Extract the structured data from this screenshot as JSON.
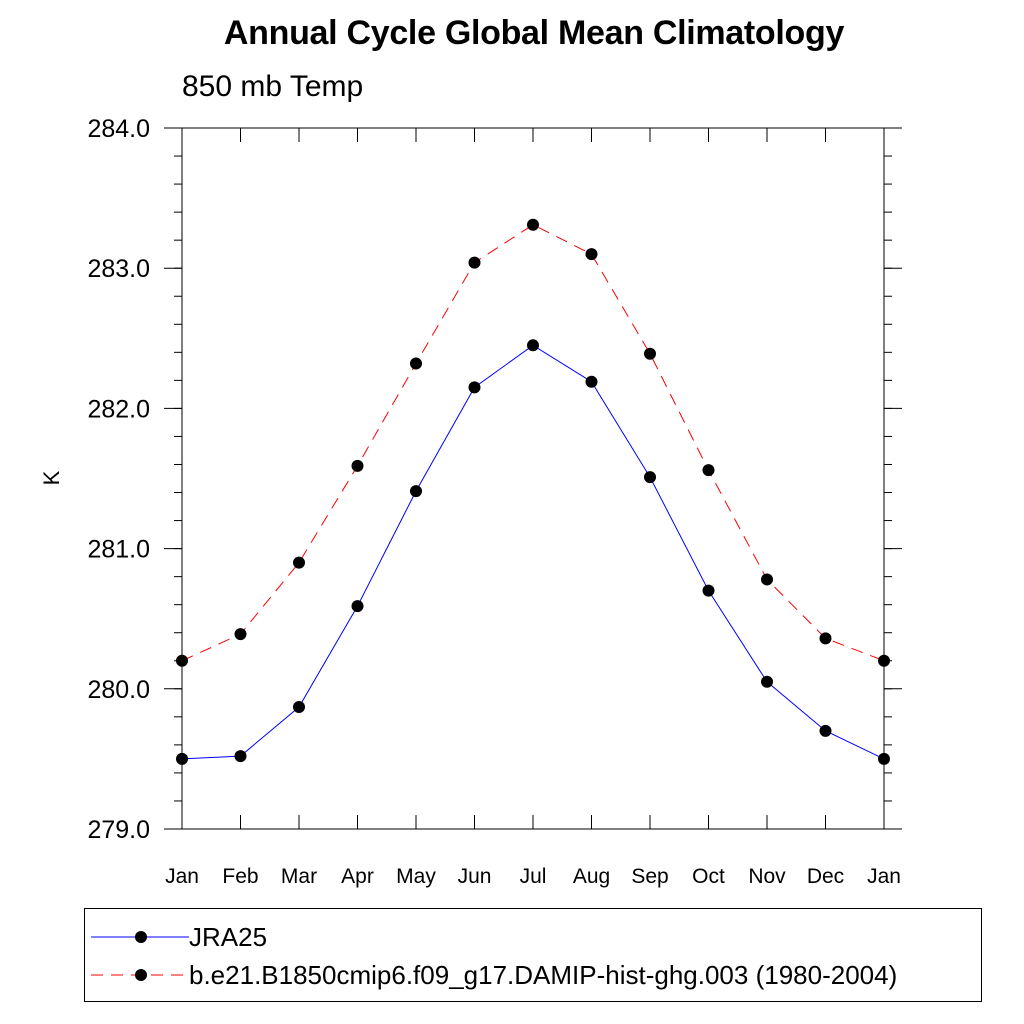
{
  "chart_data": {
    "type": "line",
    "title": "Annual Cycle Global Mean Climatology",
    "subtitle": "850 mb Temp",
    "xlabel": "",
    "ylabel": "K",
    "categories": [
      "Jan",
      "Feb",
      "Mar",
      "Apr",
      "May",
      "Jun",
      "Jul",
      "Aug",
      "Sep",
      "Oct",
      "Nov",
      "Dec",
      "Jan"
    ],
    "ylim": [
      279.0,
      284.0
    ],
    "yticks": [
      "279.0",
      "280.0",
      "281.0",
      "282.0",
      "283.0",
      "284.0"
    ],
    "grid": false,
    "legend_position": "bottom",
    "series": [
      {
        "name": "JRA25",
        "color": "#0000ff",
        "dash": "solid",
        "marker": "filled-circle",
        "values": [
          279.5,
          279.52,
          279.87,
          280.59,
          281.41,
          282.15,
          282.45,
          282.19,
          281.51,
          280.7,
          280.05,
          279.7,
          279.5
        ]
      },
      {
        "name": "b.e21.B1850cmip6.f09_g17.DAMIP-hist-ghg.003 (1980-2004)",
        "color": "#ff0000",
        "dash": "dashed",
        "marker": "filled-circle",
        "values": [
          280.2,
          280.39,
          280.9,
          281.59,
          282.32,
          283.04,
          283.31,
          283.1,
          282.39,
          281.56,
          280.78,
          280.36,
          280.2
        ]
      }
    ]
  }
}
